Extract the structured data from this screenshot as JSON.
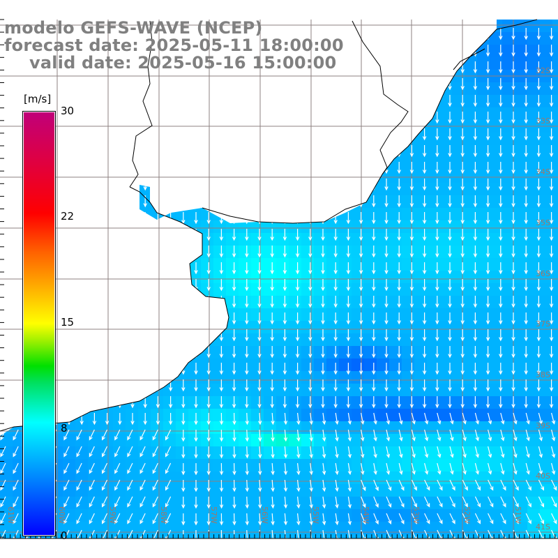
{
  "title": {
    "model": "modelo GEFS-WAVE (NCEP)",
    "forecast": "forecast date: 2025-05-11 18:00:00",
    "valid": "valid date: 2025-05-16 15:00:00"
  },
  "colorbar": {
    "unit": "[m/s]",
    "labels": [
      "30",
      "22",
      "15",
      "8",
      "0"
    ],
    "range": [
      0,
      30
    ],
    "colors": [
      "#0000ff",
      "#0080ff",
      "#00ffff",
      "#00e000",
      "#ffff00",
      "#ff0000",
      "#c0007a"
    ]
  },
  "axes": {
    "lat_labels": [
      "32S",
      "33S",
      "34S",
      "35S",
      "36S",
      "37S",
      "38S",
      "39S",
      "40S",
      "41S"
    ],
    "lon_labels": [
      "61W",
      "60W",
      "59W",
      "58W",
      "57W",
      "56W",
      "55W",
      "54W",
      "53W",
      "52W",
      "51W"
    ]
  },
  "colors": {
    "land": "#ffffff",
    "coast": "#000000",
    "grid": "#a07868",
    "arrow": "#ffffff"
  }
}
